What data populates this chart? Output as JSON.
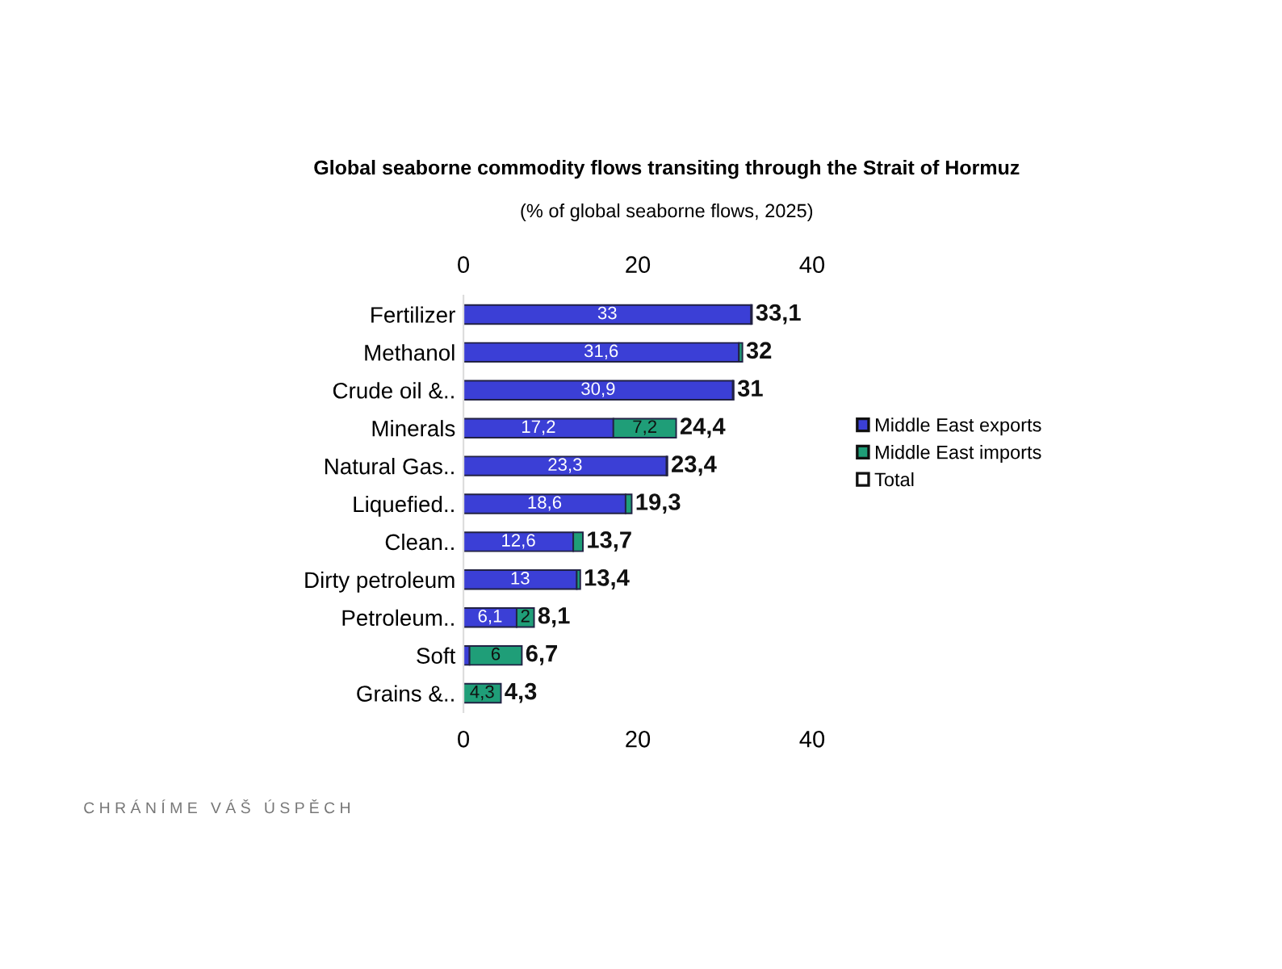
{
  "chart_data": {
    "type": "bar",
    "orientation": "horizontal",
    "stacked": true,
    "title": "Global seaborne commodity flows transiting through the Strait of Hormuz",
    "subtitle": "(% of global seaborne flows, 2025)",
    "categories": [
      "Fertilizer",
      "Methanol",
      "Crude oil &..",
      "Minerals",
      "Natural Gas..",
      "Liquefied..",
      "Clean..",
      "Dirty petroleum",
      "Petroleum..",
      "Soft",
      "Grains &.."
    ],
    "series": [
      {
        "name": "Middle East exports",
        "color": "#3b3fd6",
        "values": [
          33,
          31.6,
          30.9,
          17.2,
          23.3,
          18.6,
          12.6,
          13,
          6.1,
          0.7,
          0
        ],
        "value_labels": [
          "33",
          "31,6",
          "30,9",
          "17,2",
          "23,3",
          "18,6",
          "12,6",
          "13",
          "6,1",
          null,
          null
        ]
      },
      {
        "name": "Middle East imports",
        "color": "#1f9e78",
        "values": [
          0.1,
          0.4,
          0.1,
          7.2,
          0.1,
          0.7,
          1.1,
          0.4,
          2,
          6,
          4.3
        ],
        "value_labels": [
          null,
          null,
          null,
          "7,2",
          null,
          null,
          null,
          null,
          "2",
          "6",
          "4,3"
        ]
      },
      {
        "name": "Total",
        "color": "#ffffff",
        "values": [
          null,
          null,
          null,
          null,
          null,
          null,
          null,
          null,
          null,
          null,
          null
        ]
      }
    ],
    "totals": [
      "33,1",
      "32",
      "31",
      "24,4",
      "23,4",
      "19,3",
      "13,7",
      "13,4",
      "8,1",
      "6,7",
      "4,3"
    ],
    "xlim": [
      0,
      40
    ],
    "xticks": [
      0,
      20,
      40
    ],
    "x2lim": [
      0,
      40
    ],
    "x2ticks": [
      0,
      20,
      40
    ],
    "grid": false,
    "legend": "right",
    "annotations": [
      "C H R Á N Í M E   V Á Š   Ú S P Ě C H"
    ]
  }
}
